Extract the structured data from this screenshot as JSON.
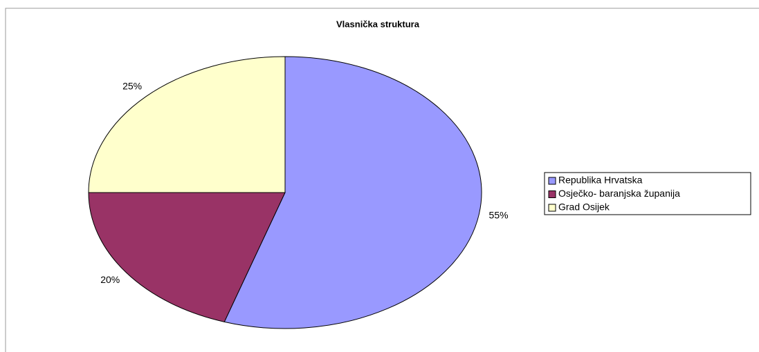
{
  "chart_data": {
    "type": "pie",
    "title": "Vlasnička struktura",
    "categories": [
      "Republika Hrvatska",
      "Osječko- baranjska županija",
      "Grad Osijek"
    ],
    "values": [
      55,
      20,
      25
    ],
    "value_labels": [
      "55%",
      "20%",
      "25%"
    ],
    "colors": [
      "#9999ff",
      "#993366",
      "#ffffcc"
    ],
    "legend": "right"
  }
}
